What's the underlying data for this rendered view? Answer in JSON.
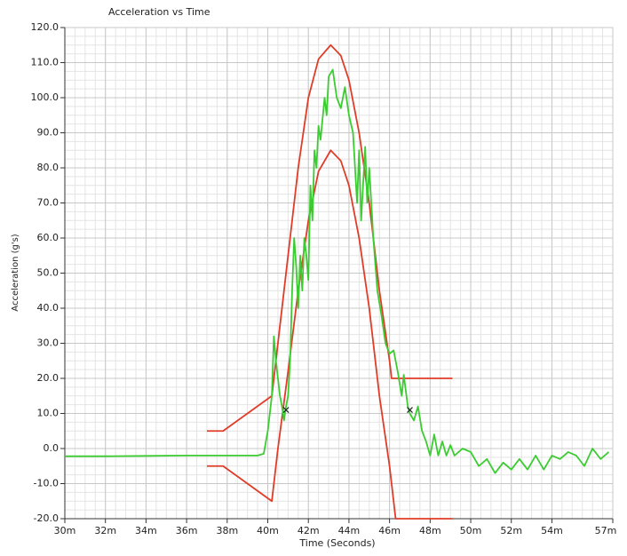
{
  "chart_data": {
    "type": "line",
    "title": "Acceleration vs Time",
    "xlabel": "Time (Seconds)",
    "ylabel": "Acceleration (g's)",
    "xlim": [
      0.03,
      0.057
    ],
    "ylim": [
      -20,
      120
    ],
    "xticks": [
      {
        "value": 0.03,
        "label": "30m"
      },
      {
        "value": 0.032,
        "label": "32m"
      },
      {
        "value": 0.034,
        "label": "34m"
      },
      {
        "value": 0.036,
        "label": "36m"
      },
      {
        "value": 0.038,
        "label": "38m"
      },
      {
        "value": 0.04,
        "label": "40m"
      },
      {
        "value": 0.042,
        "label": "42m"
      },
      {
        "value": 0.044,
        "label": "44m"
      },
      {
        "value": 0.046,
        "label": "46m"
      },
      {
        "value": 0.048,
        "label": "48m"
      },
      {
        "value": 0.05,
        "label": "50m"
      },
      {
        "value": 0.052,
        "label": "52m"
      },
      {
        "value": 0.054,
        "label": "54m"
      },
      {
        "value": 0.057,
        "label": "57m"
      }
    ],
    "yticks": [
      {
        "value": -20,
        "label": "-20.0"
      },
      {
        "value": -10,
        "label": "-10.0"
      },
      {
        "value": 0,
        "label": "0.0"
      },
      {
        "value": 10,
        "label": "10.0"
      },
      {
        "value": 20,
        "label": "20.0"
      },
      {
        "value": 30,
        "label": "30.0"
      },
      {
        "value": 40,
        "label": "40.0"
      },
      {
        "value": 50,
        "label": "50.0"
      },
      {
        "value": 60,
        "label": "60.0"
      },
      {
        "value": 70,
        "label": "70.0"
      },
      {
        "value": 80,
        "label": "80.0"
      },
      {
        "value": 90,
        "label": "90.0"
      },
      {
        "value": 100,
        "label": "100.0"
      },
      {
        "value": 110,
        "label": "110.0"
      },
      {
        "value": 120,
        "label": "120.0"
      }
    ],
    "grid": true,
    "series": [
      {
        "color": "#e03c28",
        "x": [
          0.037,
          0.0378,
          0.0402,
          0.0406,
          0.041,
          0.0415,
          0.042,
          0.0425,
          0.0431,
          0.0436,
          0.044,
          0.0445,
          0.045,
          0.0455,
          0.046,
          0.0461,
          0.0491
        ],
        "values": [
          5,
          5,
          15,
          35,
          55,
          80,
          100,
          111,
          115,
          112,
          105,
          90,
          70,
          45,
          25,
          20,
          20
        ]
      },
      {
        "color": "#e03c28",
        "x": [
          0.037,
          0.0378,
          0.0402,
          0.0405,
          0.041,
          0.0415,
          0.042,
          0.0425,
          0.0431,
          0.0436,
          0.044,
          0.0445,
          0.045,
          0.0455,
          0.046,
          0.0463,
          0.0491
        ],
        "values": [
          -5,
          -5,
          -15,
          0,
          22,
          45,
          65,
          79,
          85,
          82,
          75,
          60,
          40,
          15,
          -5,
          -20,
          -20
        ]
      },
      {
        "color": "#3ccc32",
        "x": [
          0.03,
          0.032,
          0.034,
          0.036,
          0.038,
          0.0395,
          0.0398,
          0.04,
          0.0402,
          0.0403,
          0.0404,
          0.0405,
          0.0406,
          0.0407,
          0.0408,
          0.0409,
          0.041,
          0.0411,
          0.0412,
          0.0413,
          0.0414,
          0.0415,
          0.0416,
          0.0417,
          0.0418,
          0.0419,
          0.042,
          0.0421,
          0.0422,
          0.0423,
          0.0424,
          0.0425,
          0.0426,
          0.0428,
          0.0429,
          0.043,
          0.0432,
          0.0434,
          0.0436,
          0.0438,
          0.044,
          0.0442,
          0.0444,
          0.0445,
          0.0446,
          0.0448,
          0.0449,
          0.045,
          0.0452,
          0.0454,
          0.0456,
          0.0458,
          0.046,
          0.0462,
          0.0464,
          0.0466,
          0.0467,
          0.0469,
          0.047,
          0.0472,
          0.0474,
          0.0476,
          0.0478,
          0.048,
          0.0482,
          0.0484,
          0.0486,
          0.0488,
          0.049,
          0.0492,
          0.0496,
          0.05,
          0.0504,
          0.0508,
          0.0512,
          0.0516,
          0.052,
          0.0524,
          0.0528,
          0.0532,
          0.0536,
          0.054,
          0.0544,
          0.0548,
          0.0552,
          0.0556,
          0.056,
          0.0564,
          0.0568
        ],
        "values": [
          -2.2,
          -2.2,
          -2.1,
          -2,
          -2,
          -2,
          -1.5,
          5,
          15,
          32,
          25,
          20,
          15,
          12,
          8,
          12,
          15,
          25,
          45,
          60,
          52,
          40,
          55,
          45,
          60,
          55,
          48,
          75,
          65,
          85,
          80,
          92,
          88,
          100,
          95,
          106,
          108,
          100,
          97,
          103,
          95,
          90,
          70,
          85,
          65,
          86,
          70,
          80,
          60,
          45,
          38,
          30,
          27,
          28,
          22,
          15,
          21,
          12,
          10,
          8,
          12,
          5,
          2,
          -2,
          4,
          -2,
          2,
          -2,
          1,
          -2,
          0,
          -1,
          -5,
          -3,
          -7,
          -4,
          -6,
          -3,
          -6,
          -2,
          -6,
          -2,
          -3,
          -1,
          -2,
          -5,
          0,
          -3,
          -1
        ]
      },
      {
        "color": "#222222",
        "marker": "x",
        "x": [
          0.0409,
          0.047
        ],
        "values": [
          11,
          11
        ]
      }
    ]
  }
}
